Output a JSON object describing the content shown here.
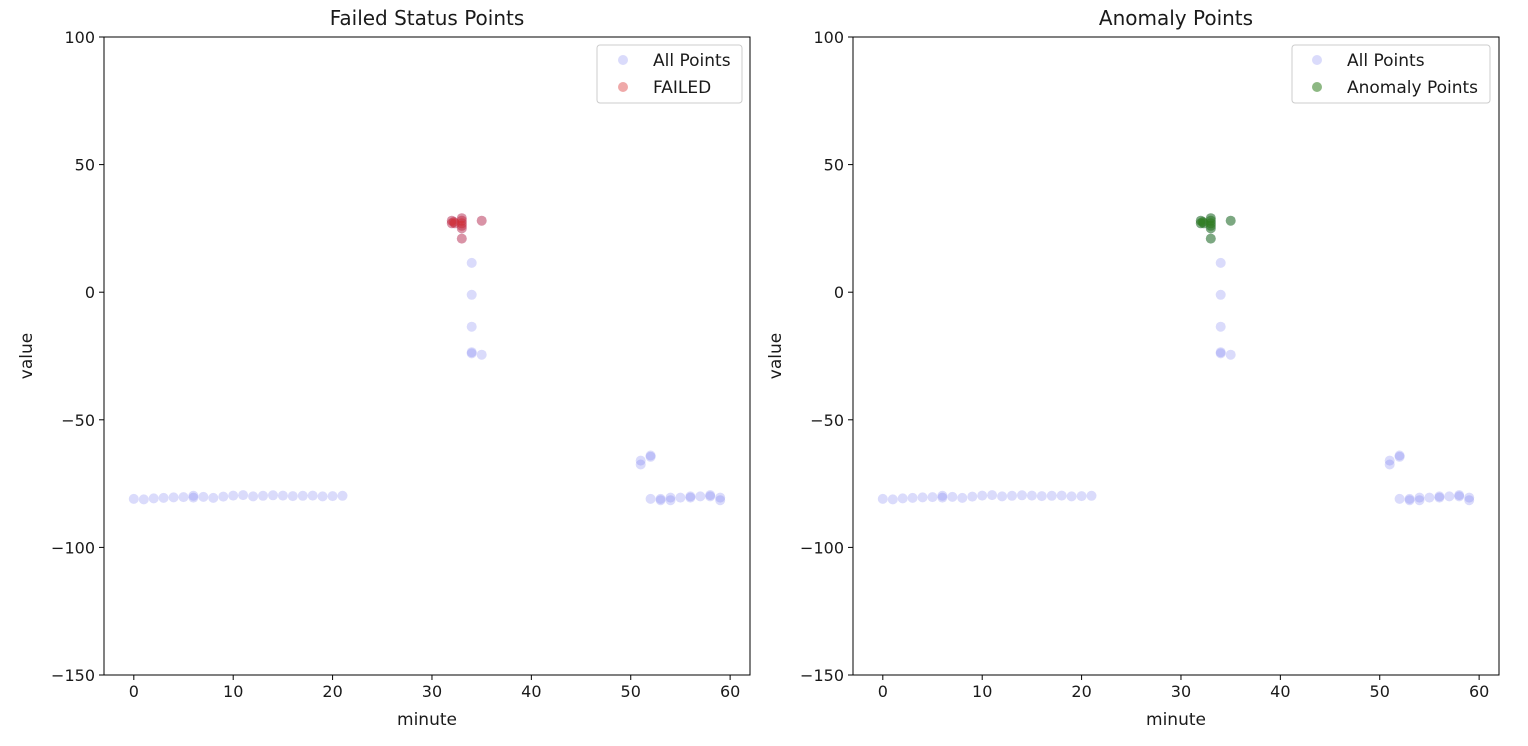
{
  "colors": {
    "all_points": "#6a6ff0",
    "failed": "#d62728",
    "anomaly": "#2f7d1e",
    "frame": "#000000",
    "background": "#ffffff"
  },
  "chart_data": [
    {
      "type": "scatter",
      "title": "Failed Status Points",
      "xlabel": "minute",
      "ylabel": "value",
      "xlim": [
        -3,
        62
      ],
      "ylim": [
        -150,
        100
      ],
      "xticks": [
        0,
        10,
        20,
        30,
        40,
        50,
        60
      ],
      "yticks": [
        -150,
        -100,
        -50,
        0,
        50,
        100
      ],
      "grid": false,
      "legend_position": "top-right",
      "series": [
        {
          "name": "All Points",
          "color": "#6a6ff0",
          "alpha": 0.25,
          "points": [
            [
              0,
              -81
            ],
            [
              1,
              -81.2
            ],
            [
              2,
              -80.8
            ],
            [
              3,
              -80.6
            ],
            [
              4,
              -80.4
            ],
            [
              5,
              -80.3
            ],
            [
              6,
              -80.5
            ],
            [
              6,
              -79.8
            ],
            [
              7,
              -80.2
            ],
            [
              8,
              -80.6
            ],
            [
              9,
              -80.1
            ],
            [
              10,
              -79.7
            ],
            [
              11,
              -79.5
            ],
            [
              12,
              -80
            ],
            [
              13,
              -79.8
            ],
            [
              14,
              -79.6
            ],
            [
              15,
              -79.7
            ],
            [
              16,
              -79.9
            ],
            [
              17,
              -79.8
            ],
            [
              18,
              -79.7
            ],
            [
              19,
              -80
            ],
            [
              20,
              -79.9
            ],
            [
              21,
              -79.8
            ],
            [
              32,
              27
            ],
            [
              32,
              28
            ],
            [
              32.2,
              27.5
            ],
            [
              32.3,
              27
            ],
            [
              33,
              29
            ],
            [
              33,
              28
            ],
            [
              33,
              27
            ],
            [
              33,
              26
            ],
            [
              33,
              25
            ],
            [
              33,
              21
            ],
            [
              35,
              28
            ],
            [
              34,
              11.5
            ],
            [
              34,
              -1
            ],
            [
              34,
              -13.5
            ],
            [
              34,
              -23.5
            ],
            [
              34,
              -24
            ],
            [
              35,
              -24.5
            ],
            [
              51,
              -66
            ],
            [
              51,
              -67.5
            ],
            [
              52,
              -64
            ],
            [
              52,
              -64.5
            ],
            [
              52,
              -81
            ],
            [
              53,
              -81
            ],
            [
              53,
              -81.5
            ],
            [
              54,
              -80.5
            ],
            [
              54,
              -81.5
            ],
            [
              55,
              -80.5
            ],
            [
              56,
              -80
            ],
            [
              56,
              -80.5
            ],
            [
              57,
              -80
            ],
            [
              58,
              -80
            ],
            [
              58,
              -79.5
            ],
            [
              59,
              -80.5
            ],
            [
              59,
              -81.5
            ]
          ]
        },
        {
          "name": "FAILED",
          "color": "#d62728",
          "alpha": 0.4,
          "points": [
            [
              32,
              27
            ],
            [
              32,
              28
            ],
            [
              32.2,
              27.5
            ],
            [
              32.3,
              27
            ],
            [
              33,
              29
            ],
            [
              33,
              28
            ],
            [
              33,
              27
            ],
            [
              33,
              26
            ],
            [
              33,
              25
            ],
            [
              33,
              21
            ],
            [
              35,
              28
            ]
          ]
        }
      ]
    },
    {
      "type": "scatter",
      "title": "Anomaly Points",
      "xlabel": "minute",
      "ylabel": "value",
      "xlim": [
        -3,
        62
      ],
      "ylim": [
        -150,
        100
      ],
      "xticks": [
        0,
        10,
        20,
        30,
        40,
        50,
        60
      ],
      "yticks": [
        -150,
        -100,
        -50,
        0,
        50,
        100
      ],
      "grid": false,
      "legend_position": "top-right",
      "series": [
        {
          "name": "All Points",
          "color": "#6a6ff0",
          "alpha": 0.25,
          "points": [
            [
              0,
              -81
            ],
            [
              1,
              -81.2
            ],
            [
              2,
              -80.8
            ],
            [
              3,
              -80.6
            ],
            [
              4,
              -80.4
            ],
            [
              5,
              -80.3
            ],
            [
              6,
              -80.5
            ],
            [
              6,
              -79.8
            ],
            [
              7,
              -80.2
            ],
            [
              8,
              -80.6
            ],
            [
              9,
              -80.1
            ],
            [
              10,
              -79.7
            ],
            [
              11,
              -79.5
            ],
            [
              12,
              -80
            ],
            [
              13,
              -79.8
            ],
            [
              14,
              -79.6
            ],
            [
              15,
              -79.7
            ],
            [
              16,
              -79.9
            ],
            [
              17,
              -79.8
            ],
            [
              18,
              -79.7
            ],
            [
              19,
              -80
            ],
            [
              20,
              -79.9
            ],
            [
              21,
              -79.8
            ],
            [
              32,
              27
            ],
            [
              32,
              28
            ],
            [
              32.2,
              27.5
            ],
            [
              32.3,
              27
            ],
            [
              33,
              29
            ],
            [
              33,
              28
            ],
            [
              33,
              27
            ],
            [
              33,
              26
            ],
            [
              33,
              25
            ],
            [
              33,
              21
            ],
            [
              35,
              28
            ],
            [
              34,
              11.5
            ],
            [
              34,
              -1
            ],
            [
              34,
              -13.5
            ],
            [
              34,
              -23.5
            ],
            [
              34,
              -24
            ],
            [
              35,
              -24.5
            ],
            [
              51,
              -66
            ],
            [
              51,
              -67.5
            ],
            [
              52,
              -64
            ],
            [
              52,
              -64.5
            ],
            [
              52,
              -81
            ],
            [
              53,
              -81
            ],
            [
              53,
              -81.5
            ],
            [
              54,
              -80.5
            ],
            [
              54,
              -81.5
            ],
            [
              55,
              -80.5
            ],
            [
              56,
              -80
            ],
            [
              56,
              -80.5
            ],
            [
              57,
              -80
            ],
            [
              58,
              -80
            ],
            [
              58,
              -79.5
            ],
            [
              59,
              -80.5
            ],
            [
              59,
              -81.5
            ]
          ]
        },
        {
          "name": "Anomaly Points",
          "color": "#2f7d1e",
          "alpha": 0.55,
          "points": [
            [
              32,
              27
            ],
            [
              32,
              28
            ],
            [
              32.2,
              27.5
            ],
            [
              32.3,
              27
            ],
            [
              33,
              29
            ],
            [
              33,
              28
            ],
            [
              33,
              27
            ],
            [
              33,
              26
            ],
            [
              33,
              25
            ],
            [
              33,
              21
            ],
            [
              35,
              28
            ]
          ]
        }
      ]
    }
  ]
}
